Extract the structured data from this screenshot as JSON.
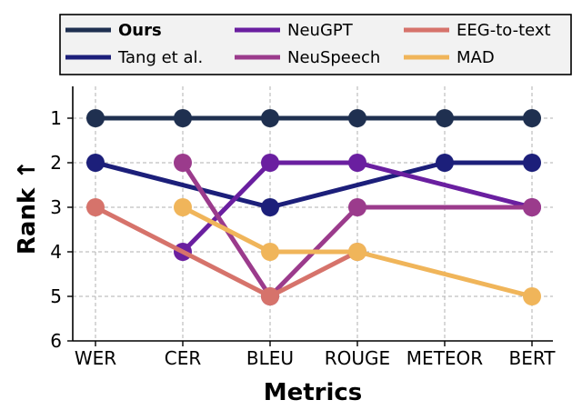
{
  "chart_data": {
    "type": "line",
    "title": "",
    "xlabel": "Metrics",
    "ylabel": "Rank ↑",
    "categories": [
      "WER",
      "CER",
      "BLEU",
      "ROUGE",
      "METEOR",
      "BERT"
    ],
    "y_ticks": [
      "1",
      "2",
      "3",
      "4",
      "5",
      "6"
    ],
    "ylim": [
      6,
      0.5
    ],
    "y_inverted": true,
    "grid": true,
    "legend_position": "top",
    "series": [
      {
        "name": "Ours",
        "color": "#1f3050",
        "bold": true,
        "values": [
          1,
          1,
          1,
          1,
          1,
          1
        ]
      },
      {
        "name": "Tang et al.",
        "color": "#1c1f7a",
        "values": [
          2,
          null,
          3,
          null,
          2,
          2
        ]
      },
      {
        "name": "NeuGPT",
        "color": "#6a1fa0",
        "values": [
          null,
          4,
          2,
          2,
          null,
          3
        ]
      },
      {
        "name": "NeuSpeech",
        "color": "#9b3b8c",
        "values": [
          null,
          2,
          5,
          3,
          null,
          3
        ]
      },
      {
        "name": "EEG-to-text",
        "color": "#d6736b",
        "values": [
          3,
          null,
          5,
          4,
          null,
          null
        ]
      },
      {
        "name": "MAD",
        "color": "#f0b55a",
        "values": [
          null,
          3,
          4,
          4,
          null,
          5
        ]
      }
    ]
  }
}
